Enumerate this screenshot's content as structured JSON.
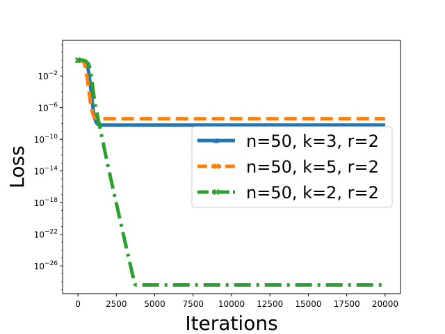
{
  "chart_data": {
    "type": "line",
    "title": "",
    "xlabel": "Iterations",
    "ylabel": "Loss",
    "yscale": "log",
    "xlim": [
      -1000,
      21000
    ],
    "ylim_log10": [
      -29.5,
      2.5
    ],
    "grid": false,
    "legend_position": "center-right",
    "x_ticks": [
      {
        "value": 0,
        "label": "0"
      },
      {
        "value": 2500,
        "label": "2500"
      },
      {
        "value": 5000,
        "label": "5000"
      },
      {
        "value": 7500,
        "label": "7500"
      },
      {
        "value": 10000,
        "label": "10000"
      },
      {
        "value": 12500,
        "label": "12500"
      },
      {
        "value": 15000,
        "label": "15000"
      },
      {
        "value": 17500,
        "label": "17500"
      },
      {
        "value": 20000,
        "label": "20000"
      }
    ],
    "y_ticks": [
      {
        "exp": -2,
        "label": "10",
        "sup": "−2"
      },
      {
        "exp": -6,
        "label": "10",
        "sup": "−6"
      },
      {
        "exp": -10,
        "label": "10",
        "sup": "−10"
      },
      {
        "exp": -14,
        "label": "10",
        "sup": "−14"
      },
      {
        "exp": -18,
        "label": "10",
        "sup": "−18"
      },
      {
        "exp": -22,
        "label": "10",
        "sup": "−22"
      },
      {
        "exp": -26,
        "label": "10",
        "sup": "−26"
      }
    ],
    "series": [
      {
        "name": "n=50, k=3, r=2",
        "color": "#1f77b4",
        "dash": "solid",
        "marker": "triangle",
        "x": [
          0,
          200,
          400,
          600,
          700,
          800,
          900,
          1000,
          1100,
          1200,
          1300,
          1500,
          2000,
          5000,
          10000,
          15000,
          20000
        ],
        "log10_y": [
          0.0,
          0.0,
          -0.1,
          -0.6,
          -1.5,
          -3.0,
          -4.8,
          -6.4,
          -7.4,
          -7.9,
          -8.1,
          -8.2,
          -8.2,
          -8.2,
          -8.2,
          -8.2,
          -8.2
        ]
      },
      {
        "name": "n=50, k=5, r=2",
        "color": "#ff7f0e",
        "dash": "dashed",
        "marker": "x",
        "x": [
          0,
          200,
          400,
          500,
          600,
          700,
          800,
          900,
          1000,
          1100,
          1300,
          2000,
          5000,
          10000,
          15000,
          20000
        ],
        "log10_y": [
          0.0,
          0.0,
          -0.3,
          -1.0,
          -2.2,
          -3.7,
          -5.2,
          -6.3,
          -7.0,
          -7.3,
          -7.4,
          -7.4,
          -7.4,
          -7.4,
          -7.4,
          -7.4
        ]
      },
      {
        "name": "n=50, k=2, r=2",
        "color": "#2ca02c",
        "dash": "dashdot",
        "marker": "x",
        "x": [
          0,
          300,
          500,
          700,
          800,
          900,
          1000,
          1100,
          1200,
          1400,
          2000,
          3000,
          3700,
          3800,
          5000,
          10000,
          15000,
          20000
        ],
        "log10_y": [
          0.0,
          0.0,
          -0.1,
          -0.5,
          -1.2,
          -2.4,
          -4.0,
          -5.4,
          -6.4,
          -8.2,
          -13.8,
          -22.4,
          -28.3,
          -28.4,
          -28.4,
          -28.4,
          -28.4,
          -28.4
        ]
      }
    ]
  }
}
